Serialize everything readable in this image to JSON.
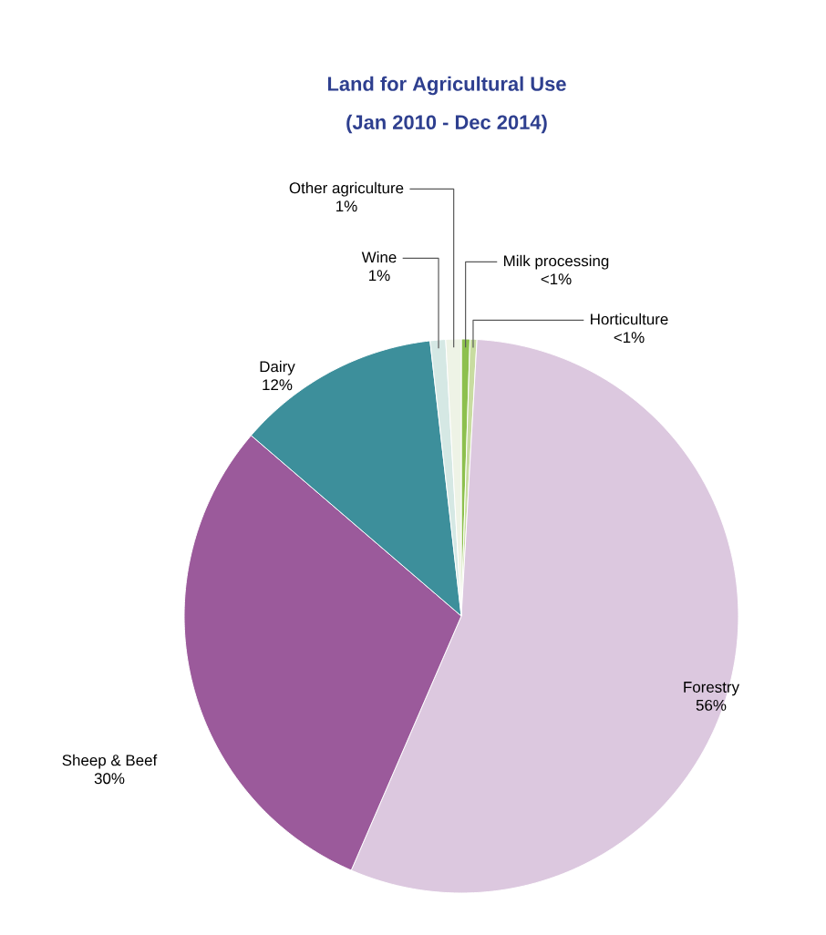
{
  "chart_data": {
    "type": "pie",
    "title": "Land for Agricultural Use",
    "subtitle": "(Jan 2010 - Dec 2014)",
    "categories": [
      "Milk processing",
      "Horticulture",
      "Forestry",
      "Sheep & Beef",
      "Dairy",
      "Wine",
      "Other agriculture"
    ],
    "values": [
      0.5,
      0.4,
      55.6,
      29.8,
      11.9,
      0.9,
      0.9
    ],
    "value_labels": [
      "<1%",
      "<1%",
      "56%",
      "30%",
      "12%",
      "1%",
      "1%"
    ],
    "colors": [
      "#8dc04e",
      "#c8dca0",
      "#dcc8df",
      "#9b5a9b",
      "#3d8f9b",
      "#d5e8e4",
      "#eef3e6"
    ]
  }
}
